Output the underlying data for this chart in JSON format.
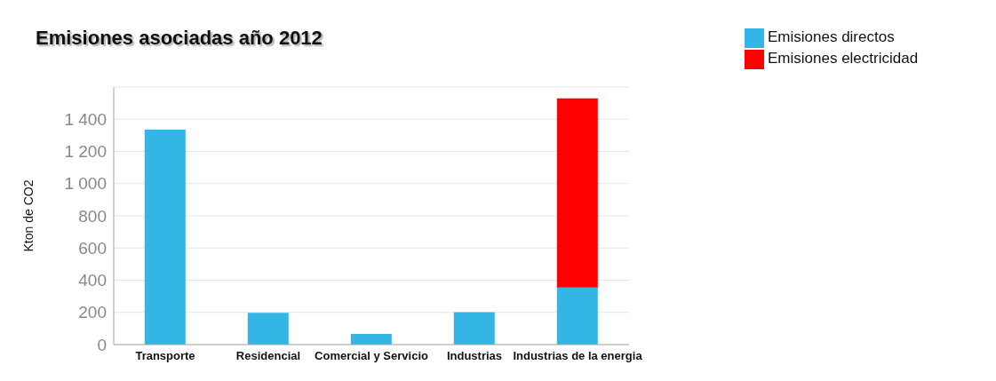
{
  "chart_data": {
    "type": "bar",
    "title": "Emisiones asociadas año 2012",
    "ylabel": "Kton de CO2",
    "categories": [
      "Transporte",
      "Residencial",
      "Comercial y Servicio",
      "Industrias",
      "Industrias de la energia"
    ],
    "series": [
      {
        "name": "Emisiones directos",
        "color": "#33b5e5",
        "values": [
          1335,
          197,
          66,
          202,
          354
        ]
      },
      {
        "name": "Emisiones electricidad",
        "color": "#ff0000",
        "values": [
          null,
          null,
          null,
          null,
          1175
        ]
      }
    ],
    "stacked": true,
    "ylim": [
      0,
      1600
    ],
    "yticks": [
      0,
      200,
      400,
      600,
      800,
      {
        "value": 1000,
        "label": "1 000"
      },
      {
        "value": 1200,
        "label": "1 200"
      },
      {
        "value": 1400,
        "label": "1 400"
      }
    ],
    "grid": "y",
    "legend": "top right"
  }
}
